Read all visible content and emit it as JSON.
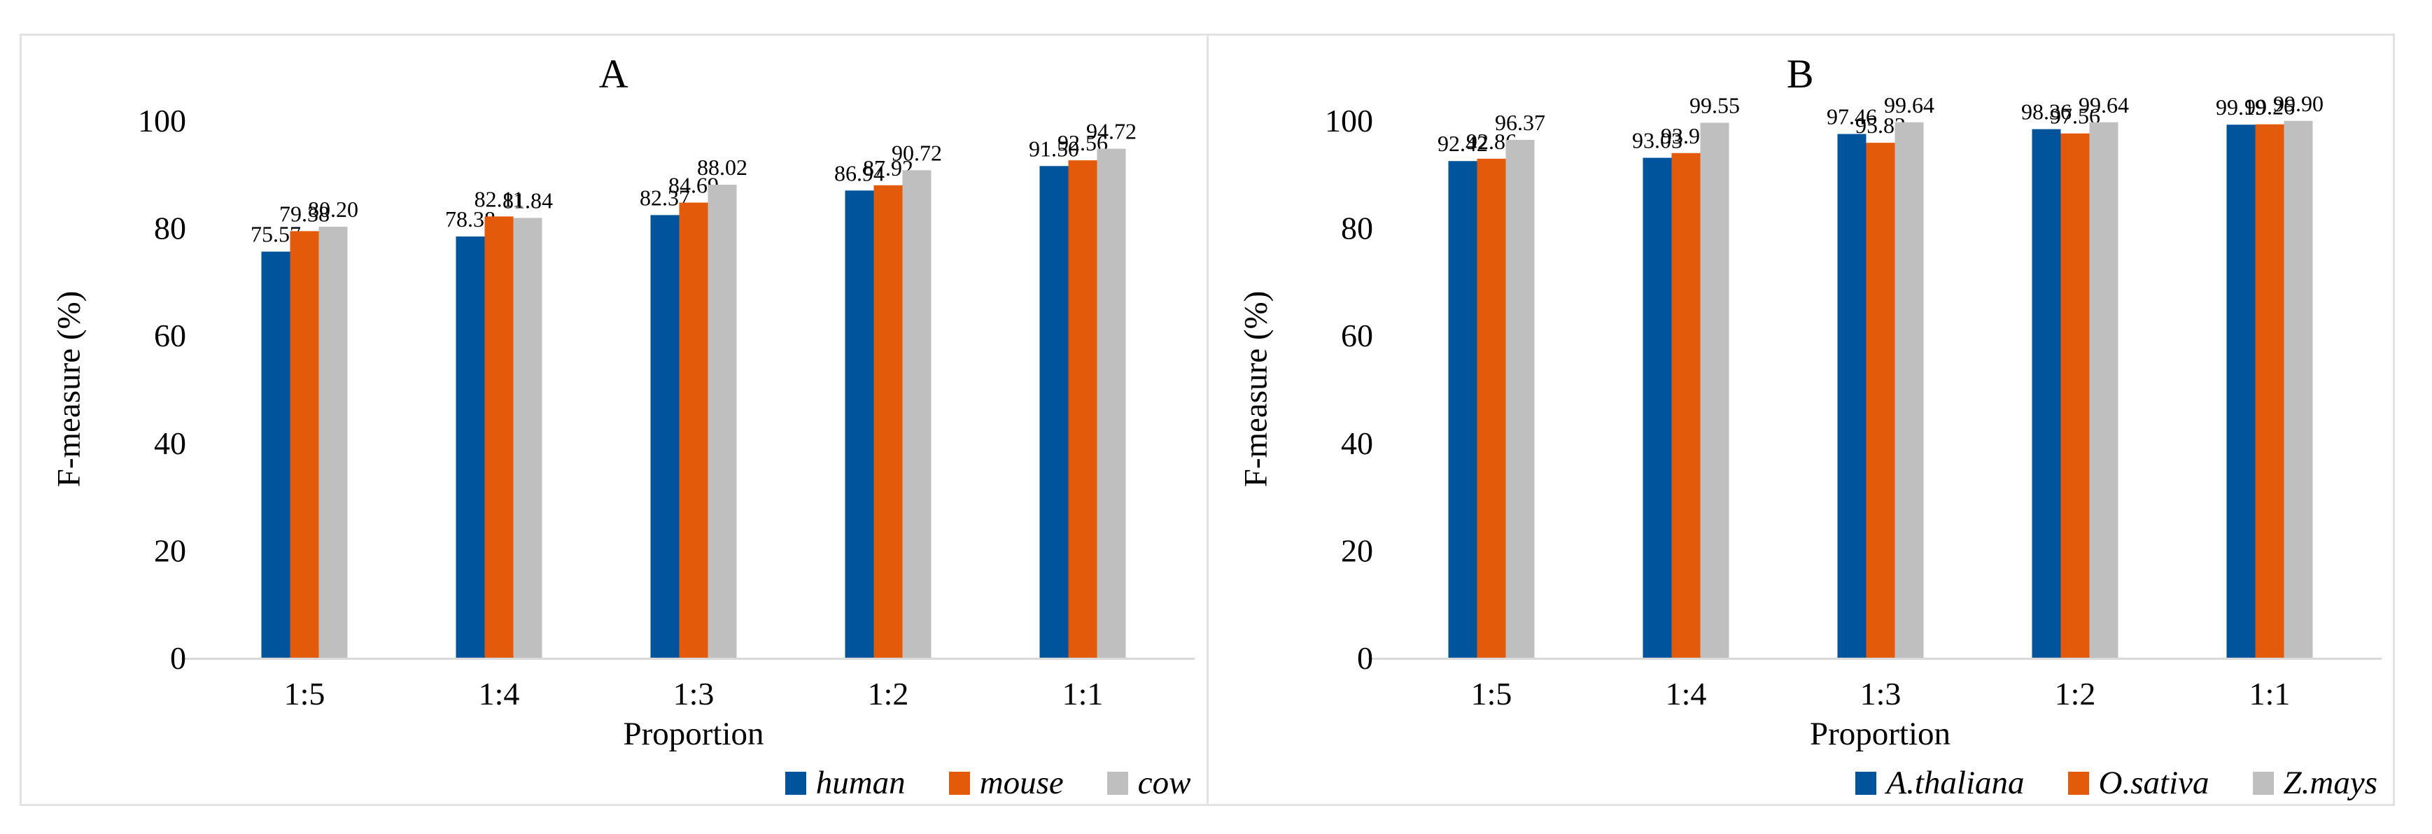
{
  "figure_background": "#ffffff",
  "frame_border_color": "#e2e2e2",
  "axis_line_color": "#d9d9d9",
  "palette": {
    "series1": "#00549b",
    "series2": "#e35a0a",
    "series3": "#bfbfbf"
  },
  "chart_data": [
    {
      "type": "bar",
      "title": "A",
      "ylabel": "F-measure (%)",
      "xlabel": "Proportion",
      "categories": [
        "1:5",
        "1:4",
        "1:3",
        "1:2",
        "1:1"
      ],
      "series": [
        {
          "name": "human",
          "color": "#00549b",
          "values": [
            75.57,
            78.38,
            82.37,
            86.94,
            91.5
          ]
        },
        {
          "name": "mouse",
          "color": "#e35a0a",
          "values": [
            79.38,
            82.11,
            84.69,
            87.92,
            92.56
          ]
        },
        {
          "name": "cow",
          "color": "#bfbfbf",
          "values": [
            80.2,
            81.84,
            88.02,
            90.72,
            94.72
          ]
        }
      ],
      "ylim": [
        0,
        100
      ],
      "yticks": [
        0,
        20,
        40,
        60,
        80,
        100
      ],
      "grid": false,
      "data_labels": true,
      "legend_position": "bottom-right"
    },
    {
      "type": "bar",
      "title": "B",
      "ylabel": "F-measure (%)",
      "xlabel": "Proportion",
      "categories": [
        "1:5",
        "1:4",
        "1:3",
        "1:2",
        "1:1"
      ],
      "series": [
        {
          "name": "A.thaliana",
          "color": "#00549b",
          "values": [
            92.42,
            93.03,
            97.46,
            98.36,
            99.19
          ]
        },
        {
          "name": "O.sativa",
          "color": "#e35a0a",
          "values": [
            92.86,
            93.91,
            95.82,
            97.56,
            99.26
          ]
        },
        {
          "name": "Z.mays",
          "color": "#bfbfbf",
          "values": [
            96.37,
            99.55,
            99.64,
            99.64,
            99.9
          ]
        }
      ],
      "ylim": [
        0,
        100
      ],
      "yticks": [
        0,
        20,
        40,
        60,
        80,
        100
      ],
      "grid": false,
      "data_labels": true,
      "legend_position": "bottom-right"
    }
  ]
}
